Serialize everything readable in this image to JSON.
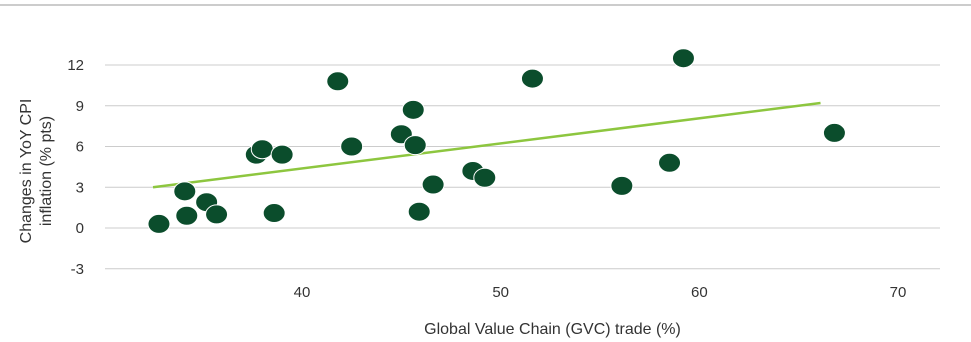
{
  "chart_data": {
    "type": "scatter",
    "title": "",
    "xlabel": "Global Value Chain (GVC) trade (%)",
    "ylabel_lines": [
      "Changes in YoY CPI",
      "inflation (% pts)"
    ],
    "xlim": [
      30,
      73
    ],
    "ylim": [
      -3,
      15
    ],
    "xticks": [
      40,
      50,
      60,
      70
    ],
    "yticks": [
      -3,
      0,
      3,
      6,
      9,
      12
    ],
    "xtick_labels": [
      "40",
      "50",
      "60",
      "70"
    ],
    "ytick_labels": [
      "-3",
      "0",
      "3",
      "6",
      "9",
      "12"
    ],
    "grid": "horizontal",
    "legend": "none",
    "colors": {
      "points": "#0b4d2c",
      "trendline": "#8dc63f",
      "grid": "#cccccc",
      "frame": "#999999"
    },
    "series": [
      {
        "points": [
          {
            "x": 32.8,
            "y": 0.3
          },
          {
            "x": 34.1,
            "y": 2.7
          },
          {
            "x": 34.2,
            "y": 0.9
          },
          {
            "x": 35.2,
            "y": 1.9
          },
          {
            "x": 35.7,
            "y": 1.0
          },
          {
            "x": 37.7,
            "y": 5.4
          },
          {
            "x": 38.0,
            "y": 5.8
          },
          {
            "x": 38.6,
            "y": 1.1
          },
          {
            "x": 39.0,
            "y": 5.4
          },
          {
            "x": 41.8,
            "y": 10.8
          },
          {
            "x": 42.5,
            "y": 6.0
          },
          {
            "x": 45.0,
            "y": 6.9
          },
          {
            "x": 45.6,
            "y": 8.7
          },
          {
            "x": 45.7,
            "y": 6.1
          },
          {
            "x": 45.9,
            "y": 1.2
          },
          {
            "x": 46.6,
            "y": 3.2
          },
          {
            "x": 48.6,
            "y": 4.2
          },
          {
            "x": 49.2,
            "y": 3.7
          },
          {
            "x": 51.6,
            "y": 11.0
          },
          {
            "x": 56.1,
            "y": 3.1
          },
          {
            "x": 58.5,
            "y": 4.8
          },
          {
            "x": 59.2,
            "y": 12.5
          },
          {
            "x": 66.8,
            "y": 7.0
          }
        ]
      }
    ],
    "trendline": {
      "x1": 32.5,
      "y1": 3.0,
      "x2": 66.1,
      "y2": 9.2
    }
  }
}
